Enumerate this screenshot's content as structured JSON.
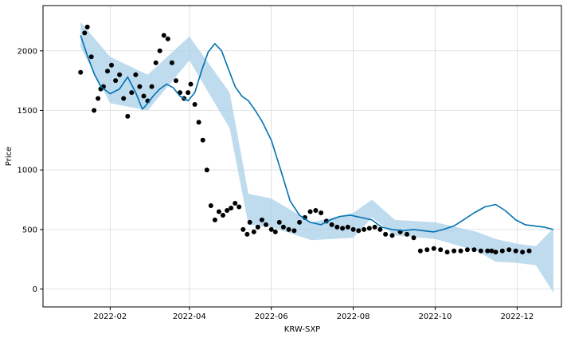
{
  "chart_data": {
    "type": "line",
    "title": "",
    "xlabel": "KRW-SXP",
    "ylabel": "Price",
    "x_range": [
      "2021-12-13",
      "2023-01-03"
    ],
    "ylim": [
      -150,
      2380
    ],
    "grid": true,
    "x_ticks": [
      "2022-02",
      "2022-04",
      "2022-06",
      "2022-08",
      "2022-10",
      "2022-12"
    ],
    "y_ticks": [
      0,
      500,
      1000,
      1500,
      2000
    ],
    "colors": {
      "observed": "#000000",
      "forecast": "#0072B2",
      "interval": "#a9cfe8",
      "grid": "#d9d9d9"
    },
    "series": [
      {
        "kind": "observed",
        "x": [
          "2022-01-10",
          "2022-01-13",
          "2022-01-15",
          "2022-01-18",
          "2022-01-20",
          "2022-01-23",
          "2022-01-25",
          "2022-01-27",
          "2022-01-30",
          "2022-02-02",
          "2022-02-05",
          "2022-02-08",
          "2022-02-11",
          "2022-02-14",
          "2022-02-17",
          "2022-02-20",
          "2022-02-23",
          "2022-02-26",
          "2022-03-01",
          "2022-03-04",
          "2022-03-07",
          "2022-03-10",
          "2022-03-13",
          "2022-03-16",
          "2022-03-19",
          "2022-03-22",
          "2022-03-25",
          "2022-03-28",
          "2022-03-31",
          "2022-04-02",
          "2022-04-05",
          "2022-04-08",
          "2022-04-11",
          "2022-04-14",
          "2022-04-17",
          "2022-04-20",
          "2022-04-23",
          "2022-04-26",
          "2022-04-29",
          "2022-05-02",
          "2022-05-05",
          "2022-05-08",
          "2022-05-11",
          "2022-05-14",
          "2022-05-16",
          "2022-05-19",
          "2022-05-22",
          "2022-05-25",
          "2022-05-28",
          "2022-06-01",
          "2022-06-04",
          "2022-06-07",
          "2022-06-10",
          "2022-06-14",
          "2022-06-18",
          "2022-06-22",
          "2022-06-26",
          "2022-06-30",
          "2022-07-04",
          "2022-07-08",
          "2022-07-12",
          "2022-07-16",
          "2022-07-20",
          "2022-07-24",
          "2022-07-28",
          "2022-08-01",
          "2022-08-05",
          "2022-08-09",
          "2022-08-13",
          "2022-08-17",
          "2022-08-21",
          "2022-08-25",
          "2022-08-30",
          "2022-09-05",
          "2022-09-10",
          "2022-09-15",
          "2022-09-20",
          "2022-09-25",
          "2022-09-30",
          "2022-10-05",
          "2022-10-10",
          "2022-10-15",
          "2022-10-20",
          "2022-10-25",
          "2022-10-30",
          "2022-11-04",
          "2022-11-09",
          "2022-11-12",
          "2022-11-15",
          "2022-11-20",
          "2022-11-25",
          "2022-11-30",
          "2022-12-05",
          "2022-12-10"
        ],
        "y": [
          1820,
          2150,
          2200,
          1950,
          1500,
          1600,
          1680,
          1700,
          1830,
          1880,
          1750,
          1800,
          1600,
          1450,
          1650,
          1800,
          1700,
          1620,
          1580,
          1700,
          1900,
          2000,
          2130,
          2100,
          1900,
          1750,
          1650,
          1600,
          1650,
          1720,
          1550,
          1400,
          1250,
          1000,
          700,
          580,
          650,
          620,
          660,
          680,
          720,
          690,
          500,
          460,
          560,
          480,
          520,
          580,
          540,
          500,
          480,
          560,
          520,
          500,
          490,
          560,
          600,
          650,
          660,
          640,
          570,
          540,
          520,
          510,
          520,
          500,
          490,
          500,
          510,
          520,
          500,
          460,
          450,
          480,
          460,
          430,
          320,
          330,
          340,
          330,
          310,
          320,
          320,
          330,
          330,
          320,
          320,
          320,
          310,
          320,
          330,
          320,
          310,
          320
        ]
      },
      {
        "kind": "forecast",
        "x": [
          "2022-01-10",
          "2022-01-15",
          "2022-01-20",
          "2022-01-25",
          "2022-02-01",
          "2022-02-08",
          "2022-02-14",
          "2022-02-20",
          "2022-02-25",
          "2022-03-01",
          "2022-03-05",
          "2022-03-10",
          "2022-03-15",
          "2022-03-20",
          "2022-03-25",
          "2022-03-31",
          "2022-04-05",
          "2022-04-10",
          "2022-04-15",
          "2022-04-20",
          "2022-04-25",
          "2022-04-30",
          "2022-05-05",
          "2022-05-10",
          "2022-05-15",
          "2022-05-20",
          "2022-05-25",
          "2022-06-01",
          "2022-06-08",
          "2022-06-15",
          "2022-06-22",
          "2022-06-30",
          "2022-07-08",
          "2022-07-15",
          "2022-07-22",
          "2022-07-30",
          "2022-08-07",
          "2022-08-15",
          "2022-08-22",
          "2022-08-30",
          "2022-09-07",
          "2022-09-15",
          "2022-09-22",
          "2022-09-30",
          "2022-10-07",
          "2022-10-15",
          "2022-10-22",
          "2022-10-30",
          "2022-11-07",
          "2022-11-15",
          "2022-11-22",
          "2022-11-30",
          "2022-12-07",
          "2022-12-14",
          "2022-12-21",
          "2022-12-28"
        ],
        "y": [
          2130,
          1960,
          1810,
          1700,
          1640,
          1680,
          1780,
          1650,
          1510,
          1560,
          1620,
          1680,
          1720,
          1690,
          1620,
          1580,
          1650,
          1830,
          1990,
          2060,
          2000,
          1850,
          1700,
          1620,
          1580,
          1500,
          1410,
          1250,
          1000,
          740,
          620,
          560,
          540,
          580,
          610,
          620,
          600,
          580,
          520,
          500,
          490,
          500,
          490,
          480,
          500,
          530,
          580,
          640,
          690,
          710,
          660,
          580,
          540,
          530,
          520,
          500
        ]
      }
    ],
    "interval": {
      "x": [
        "2022-01-10",
        "2022-02-01",
        "2022-03-01",
        "2022-04-01",
        "2022-05-01",
        "2022-05-15",
        "2022-06-01",
        "2022-07-01",
        "2022-08-01",
        "2022-08-15",
        "2022-09-01",
        "2022-10-01",
        "2022-11-01",
        "2022-11-15",
        "2022-12-01",
        "2022-12-15",
        "2022-12-28"
      ],
      "upper": [
        2240,
        1950,
        1800,
        2120,
        1650,
        800,
        760,
        560,
        640,
        750,
        580,
        560,
        480,
        420,
        380,
        360,
        510
      ],
      "lower": [
        2030,
        1560,
        1500,
        1920,
        1350,
        540,
        520,
        410,
        430,
        600,
        450,
        420,
        320,
        230,
        220,
        200,
        -30
      ]
    }
  }
}
